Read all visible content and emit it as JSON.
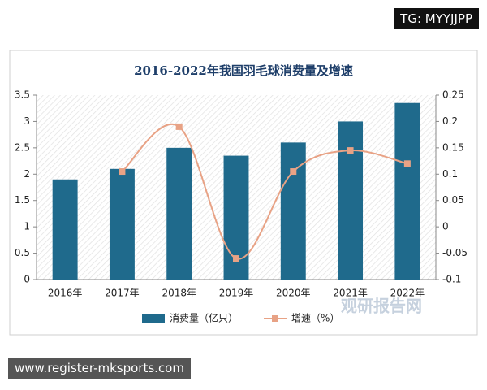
{
  "chart_data": {
    "type": "bar",
    "title": "2016-2022年我国羽毛球消费量及增速",
    "categories": [
      "2016年",
      "2017年",
      "2018年",
      "2019年",
      "2020年",
      "2021年",
      "2022年"
    ],
    "series": [
      {
        "name": "消费量（亿只）",
        "color": "#1f6a8c",
        "values": [
          1.9,
          2.1,
          2.5,
          2.35,
          2.6,
          3.0,
          3.35
        ]
      },
      {
        "name": "增速（%）",
        "color": "#e8a285",
        "type": "line",
        "axis": "y2",
        "values": [
          null,
          0.105,
          0.19,
          -0.06,
          0.105,
          0.145,
          0.12
        ]
      }
    ],
    "ylim": [
      0,
      3.5
    ],
    "yticks": [
      0,
      0.5,
      1,
      1.5,
      2,
      2.5,
      3,
      3.5
    ],
    "y2lim": [
      -0.1,
      0.25
    ],
    "y2ticks": [
      -0.1,
      -0.05,
      0,
      0.05,
      0.1,
      0.15,
      0.2,
      0.25
    ],
    "legend": "bottom"
  },
  "watermark": "观研报告网",
  "banners": {
    "top": "TG: MYYJJPP",
    "bottom": "www.register-mksports.com"
  }
}
